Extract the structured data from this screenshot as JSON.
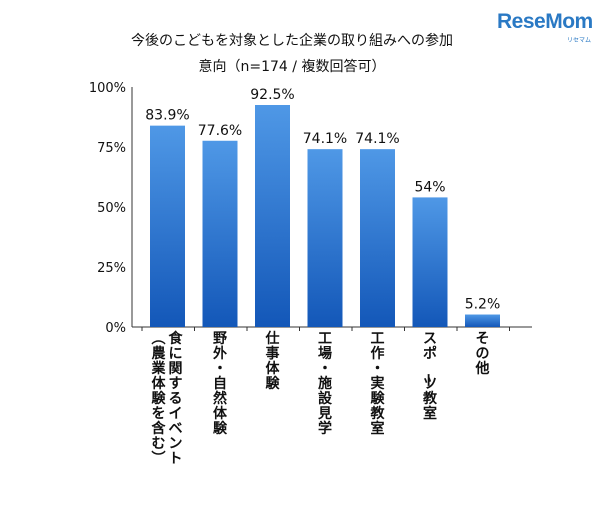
{
  "logo": {
    "main": "ReseMom",
    "sub": "リセマム"
  },
  "chart_data": {
    "type": "bar",
    "title": [
      "今後のこどもを対象とした企業の取り組みへの参加",
      "意向（n=174 / 複数回答可）"
    ],
    "categories": [
      [
        "食に関するイベント",
        "（農業体験を含む）"
      ],
      [
        "野外・自然体験"
      ],
      [
        "仕事体験"
      ],
      [
        "工場・施設見学"
      ],
      [
        "工作・実験教室"
      ],
      [
        "スポーツ教室"
      ],
      [
        "その他"
      ]
    ],
    "values": [
      83.9,
      77.6,
      92.5,
      74.1,
      74.1,
      54,
      5.2
    ],
    "value_labels": [
      "83.9%",
      "77.6%",
      "92.5%",
      "74.1%",
      "74.1%",
      "54%",
      "5.2%"
    ],
    "ylim": [
      0,
      100
    ],
    "yticks": [
      0,
      25,
      50,
      75,
      100
    ],
    "ytick_labels": [
      "0%",
      "25%",
      "50%",
      "75%",
      "100%"
    ],
    "grid": false,
    "bar_color_top": "#4f98e6",
    "bar_color_bottom": "#1357b8"
  }
}
